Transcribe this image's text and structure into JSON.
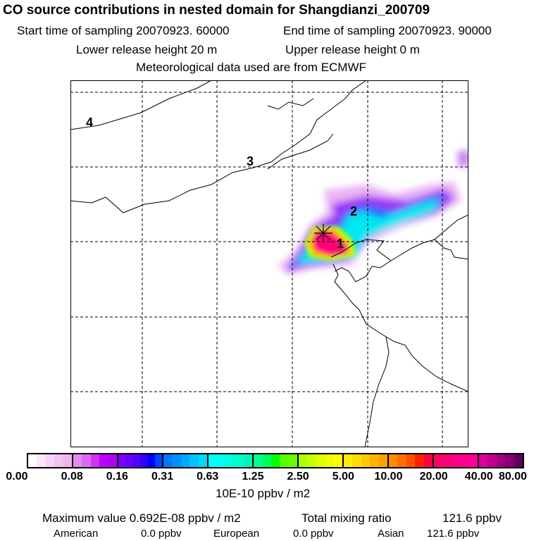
{
  "title": "CO  source contributions in nested domain for Shangdianzi_200709",
  "start_label": "Start time of sampling 20070923. 60000",
  "end_label": "End time of sampling 20070923. 90000",
  "lower_label": "Lower release height   20 m",
  "upper_label": "Upper release height    0 m",
  "met_label": "Meteorological data used are from ECMWF",
  "map": {
    "region_labels": [
      "1",
      "2",
      "3",
      "4"
    ]
  },
  "colorbar": {
    "ticks": [
      "0.00",
      "0.08",
      "0.16",
      "0.31",
      "0.63",
      "1.25",
      "2.50",
      "5.00",
      "10.00",
      "20.00",
      "40.00",
      "80.00"
    ],
    "colors": [
      [
        "#ffffff",
        "#fbe6fb",
        "#f6d2f6",
        "#f2c2f2",
        "#efb4ef"
      ],
      [
        "#e28cf2",
        "#d86cf0",
        "#cc33f5",
        "#c000ff",
        "#b000f5"
      ],
      [
        "#8000ff",
        "#6a00ff",
        "#5500ff",
        "#3300ff",
        "#0000ff",
        "#0044ff"
      ],
      [
        "#0077ff",
        "#0090ff",
        "#00a8ff",
        "#00c4ff",
        "#00d8ff"
      ],
      [
        "#00ffff",
        "#00ffee",
        "#00ffdd",
        "#00ffcc",
        "#00f5bb"
      ],
      [
        "#00ff90",
        "#00ff60",
        "#00ff00",
        "#55ff00",
        "#66ff00"
      ],
      [
        "#aaff00",
        "#c8ff00",
        "#ddff00",
        "#eeff00",
        "#ffff00"
      ],
      [
        "#ffee00",
        "#ffdd00",
        "#ffc800",
        "#ffb400",
        "#ffa000"
      ],
      [
        "#ff8c00",
        "#ff7000",
        "#ff5000",
        "#ff2000",
        "#ff0040"
      ],
      [
        "#ff0066",
        "#ff0077",
        "#ff0088",
        "#ff0090",
        "#ff0099"
      ],
      [
        "#dd0099",
        "#c00090",
        "#a00080",
        "#880070",
        "#600060"
      ]
    ],
    "unit": "10E-10 ppbv / m2"
  },
  "summary": {
    "max_label": "Maximum value  0.692E-08 ppbv / m2",
    "total_label": "Total mixing ratio",
    "total_value": "121.6 ppbv",
    "american_label": "American",
    "american_value": "0.0 ppbv",
    "european_label": "European",
    "european_value": "0.0 ppbv",
    "asian_label": "Asian",
    "asian_value": "121.6 ppbv"
  }
}
